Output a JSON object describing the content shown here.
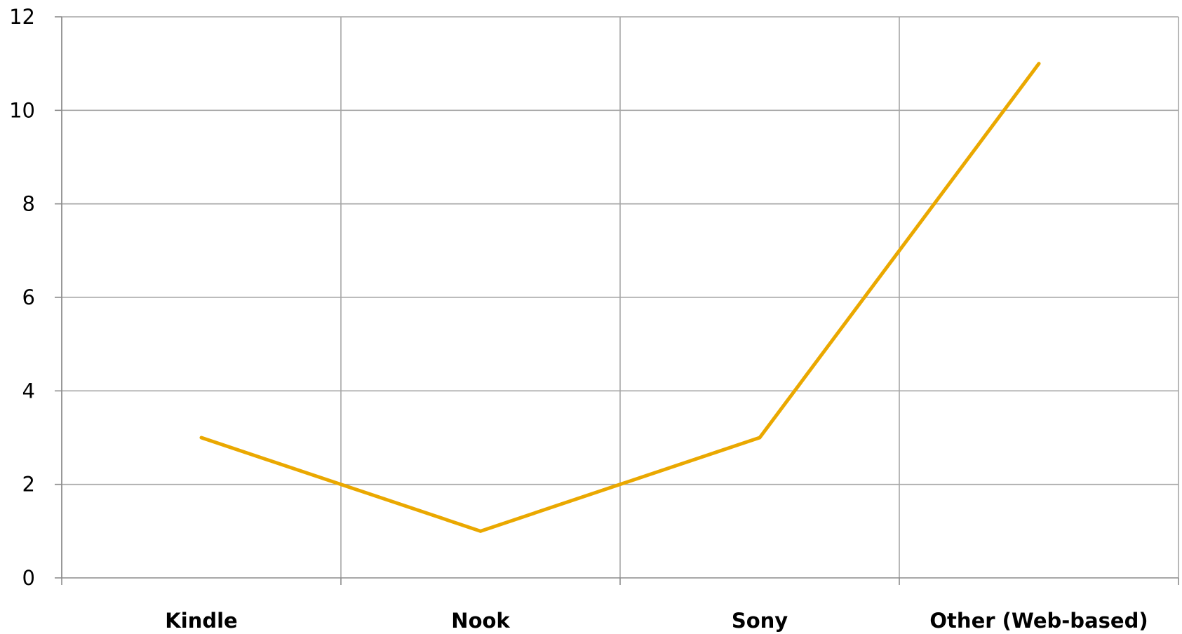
{
  "chart_data": {
    "type": "line",
    "title": "",
    "xlabel": "",
    "ylabel": "",
    "categories": [
      "Kindle",
      "Nook",
      "Sony",
      "Other (Web-based)"
    ],
    "series": [
      {
        "values": [
          3,
          1,
          3,
          11
        ],
        "color": "#eaa800"
      }
    ],
    "ylim": [
      0,
      12
    ],
    "yticks": [
      0,
      2,
      4,
      6,
      8,
      10,
      12
    ],
    "grid": true,
    "legend": "none",
    "gridline_color": "#a6a6a6",
    "axis_color": "#8c8c8c"
  }
}
